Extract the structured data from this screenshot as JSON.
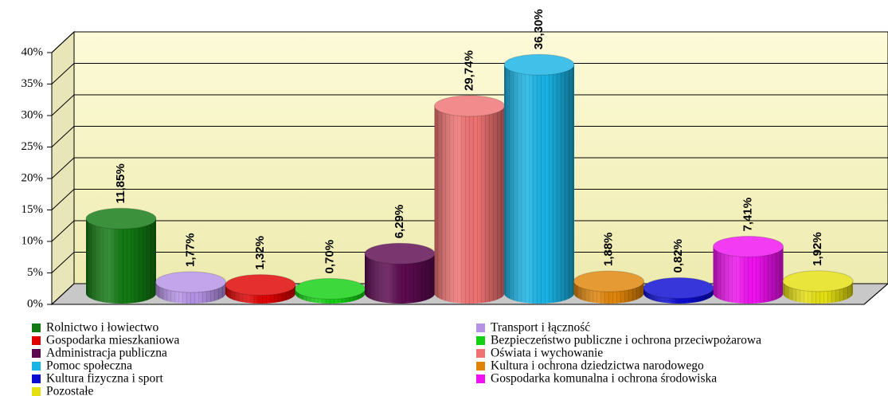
{
  "chart_data": {
    "type": "bar",
    "categories": [
      "Rolnictwo i łowiectwo",
      "Transport i łączność",
      "Gospodarka mieszkaniowa",
      "Bezpieczeństwo publiczne i ochrona przeciwpożarowa",
      "Administracja publiczna",
      "Oświata i wychowanie",
      "Pomoc społeczna",
      "Kultura i ochrona dziedzictwa narodowego",
      "Kultura fizyczna i sport",
      "Gospodarka komunalna i ochrona środowiska",
      "Pozostałe"
    ],
    "values": [
      11.85,
      1.77,
      1.32,
      0.7,
      6.29,
      29.74,
      36.3,
      1.88,
      0.82,
      7.41,
      1.92
    ],
    "value_labels": [
      "11,85%",
      "1,77%",
      "1,32%",
      "0,70%",
      "6,29%",
      "29,74%",
      "36,30%",
      "1,88%",
      "0,82%",
      "7,41%",
      "1,92%"
    ],
    "colors": [
      "#127a12",
      "#b592e6",
      "#e00000",
      "#12d012",
      "#5c0a50",
      "#f07272",
      "#18b4e6",
      "#e08408",
      "#0a0ad2",
      "#f010f0",
      "#e6e010"
    ],
    "ylim": [
      0,
      40
    ],
    "yticks": [
      {
        "value": 0,
        "label": "0%"
      },
      {
        "value": 5,
        "label": "5%"
      },
      {
        "value": 10,
        "label": "10%"
      },
      {
        "value": 15,
        "label": "15%"
      },
      {
        "value": 20,
        "label": "20%"
      },
      {
        "value": 25,
        "label": "25%"
      },
      {
        "value": 30,
        "label": "30%"
      },
      {
        "value": 35,
        "label": "35%"
      },
      {
        "value": 40,
        "label": "40%"
      }
    ],
    "grid": true,
    "legend": "bottom"
  }
}
